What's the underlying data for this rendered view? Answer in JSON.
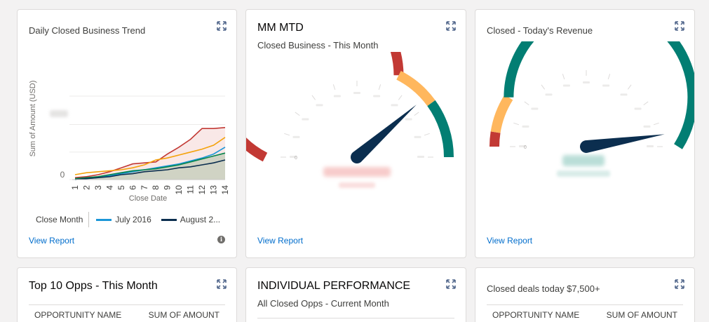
{
  "cards": {
    "daily_trend": {
      "title": "Daily Closed Business Trend",
      "view_report": "View Report",
      "legend_title": "Close Month",
      "legend_items": [
        {
          "label": "July 2016",
          "color": "#1b96d8"
        },
        {
          "label": "August 2...",
          "color": "#0b2e4f"
        }
      ]
    },
    "mm_mtd": {
      "title": "MM MTD",
      "subtitle": "Closed Business - This Month",
      "view_report": "View Report",
      "gauge_value_fraction": 0.77
    },
    "today_revenue": {
      "title": "Closed - Today's Revenue",
      "view_report": "View Report",
      "gauge_value_fraction": 0.95
    },
    "top10": {
      "title": "Top 10 Opps - This Month",
      "col1": "OPPORTUNITY NAME",
      "col2": "SUM OF AMOUNT"
    },
    "individual": {
      "title": "INDIVIDUAL PERFORMANCE",
      "subtitle": "All Closed Opps - Current Month"
    },
    "closed_deals": {
      "title": "Closed deals today $7,500+",
      "col1": "OPPORTUNITY NAME",
      "col2": "SUM OF AMOUNT"
    }
  },
  "chart_data": {
    "type": "line",
    "xlabel": "Close Date",
    "ylabel": "Sum of Amount (USD)",
    "x": [
      1,
      2,
      3,
      4,
      5,
      6,
      7,
      8,
      9,
      10,
      11,
      12,
      13,
      14
    ],
    "y_ticks": [
      "0"
    ],
    "series": [
      {
        "color": "#c23934",
        "values": [
          0.02,
          0.03,
          0.05,
          0.08,
          0.12,
          0.16,
          0.17,
          0.18,
          0.26,
          0.33,
          0.41,
          0.52,
          0.52,
          0.53
        ]
      },
      {
        "color": "#f4a20a",
        "values": [
          0.05,
          0.07,
          0.08,
          0.09,
          0.1,
          0.12,
          0.15,
          0.2,
          0.22,
          0.25,
          0.28,
          0.31,
          0.35,
          0.43
        ]
      },
      {
        "color": "#1b96d8",
        "values": [
          0.0,
          0.01,
          0.02,
          0.04,
          0.06,
          0.08,
          0.1,
          0.12,
          0.14,
          0.16,
          0.19,
          0.22,
          0.26,
          0.33
        ]
      },
      {
        "color": "#04844b",
        "values": [
          0.01,
          0.02,
          0.03,
          0.05,
          0.07,
          0.09,
          0.1,
          0.11,
          0.13,
          0.15,
          0.18,
          0.21,
          0.24,
          0.27
        ]
      },
      {
        "color": "#0b2e4f",
        "values": [
          0.0,
          0.01,
          0.02,
          0.03,
          0.05,
          0.06,
          0.08,
          0.09,
          0.1,
          0.12,
          0.13,
          0.15,
          0.17,
          0.2
        ]
      }
    ]
  },
  "icons": {
    "expand": "expand-icon",
    "info": "info-icon"
  }
}
